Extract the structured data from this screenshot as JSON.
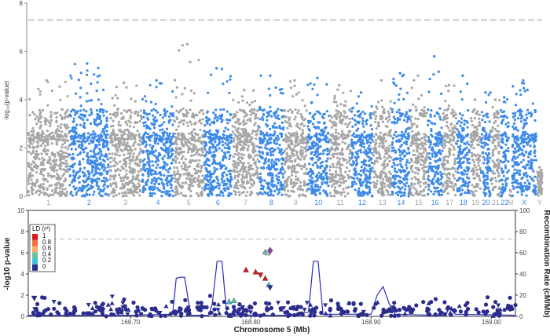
{
  "chart_data": [
    {
      "type": "scatter",
      "subtype": "manhattan",
      "ylabel": "-log₁₀(p-value)",
      "ylim": [
        0,
        8
      ],
      "yticks": [
        0,
        2,
        4,
        6,
        8
      ],
      "significance_line": 7.3,
      "colors": {
        "odd": "#a6a6a6",
        "even": "#3d8ae8"
      },
      "chromosomes": [
        {
          "name": "1",
          "peak": 4.8
        },
        {
          "name": "2",
          "peak": 5.5
        },
        {
          "name": "3",
          "peak": 4.7
        },
        {
          "name": "4",
          "peak": 4.8
        },
        {
          "name": "5",
          "peak": 6.3
        },
        {
          "name": "6",
          "peak": 5.3
        },
        {
          "name": "7",
          "peak": 4.4
        },
        {
          "name": "8",
          "peak": 5.0
        },
        {
          "name": "9",
          "peak": 4.8
        },
        {
          "name": "10",
          "peak": 4.9
        },
        {
          "name": "11",
          "peak": 4.6
        },
        {
          "name": "12",
          "peak": 4.3
        },
        {
          "name": "13",
          "peak": 4.8
        },
        {
          "name": "14",
          "peak": 5.1
        },
        {
          "name": "15",
          "peak": 5.0
        },
        {
          "name": "16",
          "peak": 5.8
        },
        {
          "name": "17",
          "peak": 4.6
        },
        {
          "name": "18",
          "peak": 5.0
        },
        {
          "name": "19",
          "peak": 4.0
        },
        {
          "name": "20",
          "peak": 4.3
        },
        {
          "name": "21",
          "peak": 4.0
        },
        {
          "name": "22",
          "peak": 4.1
        },
        {
          "name": "M",
          "peak": 0.4
        },
        {
          "name": "X",
          "peak": 4.8
        },
        {
          "name": "Y",
          "peak": 1.2
        }
      ]
    },
    {
      "type": "scatter",
      "subtype": "locuszoom",
      "xlabel": "Chromosome 5 (Mb)",
      "ylabel": "-log10 p-value",
      "y2label": "Recombination Rate (cM/Mb)",
      "xlim": [
        168.615,
        169.02
      ],
      "xticks": [
        "168.70",
        "168.80",
        "168.90",
        "169.00"
      ],
      "xtick_values": [
        168.7,
        168.8,
        168.9,
        169.0
      ],
      "ylim": [
        0,
        10
      ],
      "yticks": [
        0,
        2,
        4,
        6,
        8,
        10
      ],
      "y2lim": [
        0,
        100
      ],
      "y2ticks": [
        0,
        20,
        40,
        60,
        80,
        100
      ],
      "significance_line": 7.3,
      "legend": {
        "title": "LD (r²)",
        "entries": [
          "1",
          "0.8",
          "0.6",
          "0.4",
          "0.2",
          "0"
        ],
        "colors": [
          "#d7191c",
          "#f46d43",
          "#fdae61",
          "#66c2a5",
          "#3ec0dc",
          "#2b2d8e"
        ]
      },
      "highlight_points": [
        {
          "x": 168.812,
          "y": 6.1,
          "color": "#66c2a5",
          "shape": "triangle-up"
        },
        {
          "x": 168.816,
          "y": 6.2,
          "color": "#8e44ad",
          "shape": "diamond"
        },
        {
          "x": 168.814,
          "y": 6.0,
          "color": "#c0c0c0",
          "shape": "triangle-up"
        },
        {
          "x": 168.796,
          "y": 4.4,
          "color": "#d7191c",
          "shape": "triangle-up"
        },
        {
          "x": 168.804,
          "y": 4.2,
          "color": "#d7191c",
          "shape": "triangle-up"
        },
        {
          "x": 168.808,
          "y": 3.9,
          "color": "#d7191c",
          "shape": "triangle-down"
        },
        {
          "x": 168.812,
          "y": 3.6,
          "color": "#d7191c",
          "shape": "triangle-up"
        },
        {
          "x": 168.815,
          "y": 3.0,
          "color": "#3ec0dc",
          "shape": "triangle-up"
        },
        {
          "x": 168.816,
          "y": 2.7,
          "color": "#2b2d8e",
          "shape": "triangle-down"
        },
        {
          "x": 168.782,
          "y": 1.4,
          "color": "#3ec0dc",
          "shape": "triangle-up"
        },
        {
          "x": 168.786,
          "y": 1.5,
          "color": "#66c2a5",
          "shape": "triangle-up"
        },
        {
          "x": 168.62,
          "y": 1.7,
          "color": "#2b2d8e",
          "shape": "triangle-down"
        }
      ],
      "recombination_rate": {
        "x": [
          168.615,
          168.66,
          168.7,
          168.735,
          168.738,
          168.742,
          168.745,
          168.75,
          168.765,
          168.768,
          168.772,
          168.776,
          168.78,
          168.8,
          168.83,
          168.848,
          168.852,
          168.856,
          168.86,
          168.9,
          168.905,
          168.91,
          168.915,
          168.92,
          168.95,
          168.962,
          168.965,
          168.97,
          169.02
        ],
        "y": [
          1,
          1,
          1,
          2,
          36,
          37,
          37,
          1,
          1,
          12,
          52,
          52,
          2,
          1,
          1,
          4,
          52,
          52,
          2,
          2,
          20,
          28,
          12,
          2,
          1,
          1,
          8,
          2,
          1
        ]
      }
    }
  ]
}
